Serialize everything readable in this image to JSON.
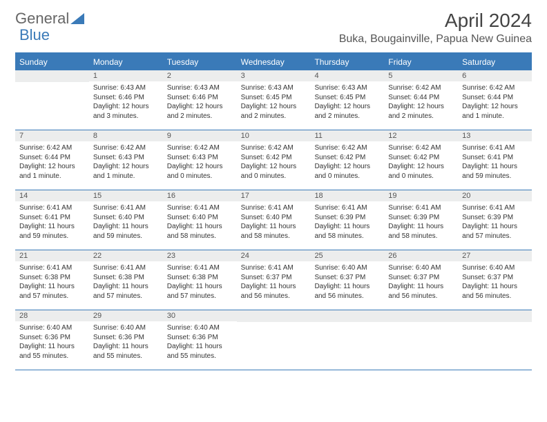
{
  "logo": {
    "text1": "General",
    "text2": "Blue"
  },
  "title": "April 2024",
  "location": "Buka, Bougainville, Papua New Guinea",
  "colors": {
    "accent": "#3a7ab8",
    "header_bg": "#3a7ab8",
    "daynum_bg": "#eceded",
    "text": "#333333"
  },
  "day_names": [
    "Sunday",
    "Monday",
    "Tuesday",
    "Wednesday",
    "Thursday",
    "Friday",
    "Saturday"
  ],
  "weeks": [
    [
      {
        "empty": true
      },
      {
        "num": "1",
        "sunrise": "Sunrise: 6:43 AM",
        "sunset": "Sunset: 6:46 PM",
        "daylight": "Daylight: 12 hours and 3 minutes."
      },
      {
        "num": "2",
        "sunrise": "Sunrise: 6:43 AM",
        "sunset": "Sunset: 6:46 PM",
        "daylight": "Daylight: 12 hours and 2 minutes."
      },
      {
        "num": "3",
        "sunrise": "Sunrise: 6:43 AM",
        "sunset": "Sunset: 6:45 PM",
        "daylight": "Daylight: 12 hours and 2 minutes."
      },
      {
        "num": "4",
        "sunrise": "Sunrise: 6:43 AM",
        "sunset": "Sunset: 6:45 PM",
        "daylight": "Daylight: 12 hours and 2 minutes."
      },
      {
        "num": "5",
        "sunrise": "Sunrise: 6:42 AM",
        "sunset": "Sunset: 6:44 PM",
        "daylight": "Daylight: 12 hours and 2 minutes."
      },
      {
        "num": "6",
        "sunrise": "Sunrise: 6:42 AM",
        "sunset": "Sunset: 6:44 PM",
        "daylight": "Daylight: 12 hours and 1 minute."
      }
    ],
    [
      {
        "num": "7",
        "sunrise": "Sunrise: 6:42 AM",
        "sunset": "Sunset: 6:44 PM",
        "daylight": "Daylight: 12 hours and 1 minute."
      },
      {
        "num": "8",
        "sunrise": "Sunrise: 6:42 AM",
        "sunset": "Sunset: 6:43 PM",
        "daylight": "Daylight: 12 hours and 1 minute."
      },
      {
        "num": "9",
        "sunrise": "Sunrise: 6:42 AM",
        "sunset": "Sunset: 6:43 PM",
        "daylight": "Daylight: 12 hours and 0 minutes."
      },
      {
        "num": "10",
        "sunrise": "Sunrise: 6:42 AM",
        "sunset": "Sunset: 6:42 PM",
        "daylight": "Daylight: 12 hours and 0 minutes."
      },
      {
        "num": "11",
        "sunrise": "Sunrise: 6:42 AM",
        "sunset": "Sunset: 6:42 PM",
        "daylight": "Daylight: 12 hours and 0 minutes."
      },
      {
        "num": "12",
        "sunrise": "Sunrise: 6:42 AM",
        "sunset": "Sunset: 6:42 PM",
        "daylight": "Daylight: 12 hours and 0 minutes."
      },
      {
        "num": "13",
        "sunrise": "Sunrise: 6:41 AM",
        "sunset": "Sunset: 6:41 PM",
        "daylight": "Daylight: 11 hours and 59 minutes."
      }
    ],
    [
      {
        "num": "14",
        "sunrise": "Sunrise: 6:41 AM",
        "sunset": "Sunset: 6:41 PM",
        "daylight": "Daylight: 11 hours and 59 minutes."
      },
      {
        "num": "15",
        "sunrise": "Sunrise: 6:41 AM",
        "sunset": "Sunset: 6:40 PM",
        "daylight": "Daylight: 11 hours and 59 minutes."
      },
      {
        "num": "16",
        "sunrise": "Sunrise: 6:41 AM",
        "sunset": "Sunset: 6:40 PM",
        "daylight": "Daylight: 11 hours and 58 minutes."
      },
      {
        "num": "17",
        "sunrise": "Sunrise: 6:41 AM",
        "sunset": "Sunset: 6:40 PM",
        "daylight": "Daylight: 11 hours and 58 minutes."
      },
      {
        "num": "18",
        "sunrise": "Sunrise: 6:41 AM",
        "sunset": "Sunset: 6:39 PM",
        "daylight": "Daylight: 11 hours and 58 minutes."
      },
      {
        "num": "19",
        "sunrise": "Sunrise: 6:41 AM",
        "sunset": "Sunset: 6:39 PM",
        "daylight": "Daylight: 11 hours and 58 minutes."
      },
      {
        "num": "20",
        "sunrise": "Sunrise: 6:41 AM",
        "sunset": "Sunset: 6:39 PM",
        "daylight": "Daylight: 11 hours and 57 minutes."
      }
    ],
    [
      {
        "num": "21",
        "sunrise": "Sunrise: 6:41 AM",
        "sunset": "Sunset: 6:38 PM",
        "daylight": "Daylight: 11 hours and 57 minutes."
      },
      {
        "num": "22",
        "sunrise": "Sunrise: 6:41 AM",
        "sunset": "Sunset: 6:38 PM",
        "daylight": "Daylight: 11 hours and 57 minutes."
      },
      {
        "num": "23",
        "sunrise": "Sunrise: 6:41 AM",
        "sunset": "Sunset: 6:38 PM",
        "daylight": "Daylight: 11 hours and 57 minutes."
      },
      {
        "num": "24",
        "sunrise": "Sunrise: 6:41 AM",
        "sunset": "Sunset: 6:37 PM",
        "daylight": "Daylight: 11 hours and 56 minutes."
      },
      {
        "num": "25",
        "sunrise": "Sunrise: 6:40 AM",
        "sunset": "Sunset: 6:37 PM",
        "daylight": "Daylight: 11 hours and 56 minutes."
      },
      {
        "num": "26",
        "sunrise": "Sunrise: 6:40 AM",
        "sunset": "Sunset: 6:37 PM",
        "daylight": "Daylight: 11 hours and 56 minutes."
      },
      {
        "num": "27",
        "sunrise": "Sunrise: 6:40 AM",
        "sunset": "Sunset: 6:37 PM",
        "daylight": "Daylight: 11 hours and 56 minutes."
      }
    ],
    [
      {
        "num": "28",
        "sunrise": "Sunrise: 6:40 AM",
        "sunset": "Sunset: 6:36 PM",
        "daylight": "Daylight: 11 hours and 55 minutes."
      },
      {
        "num": "29",
        "sunrise": "Sunrise: 6:40 AM",
        "sunset": "Sunset: 6:36 PM",
        "daylight": "Daylight: 11 hours and 55 minutes."
      },
      {
        "num": "30",
        "sunrise": "Sunrise: 6:40 AM",
        "sunset": "Sunset: 6:36 PM",
        "daylight": "Daylight: 11 hours and 55 minutes."
      },
      {
        "empty": true
      },
      {
        "empty": true
      },
      {
        "empty": true
      },
      {
        "empty": true
      }
    ]
  ]
}
